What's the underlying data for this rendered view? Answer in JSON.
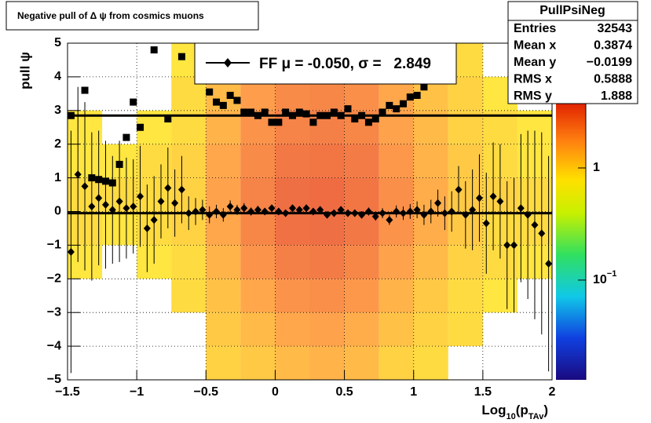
{
  "chart_data": {
    "type": "profile2d",
    "title": "Negative pull of Δ ψ from cosmics muons",
    "x_label": [
      "Log",
      "10",
      "(p",
      "TAv",
      ")"
    ],
    "y_label": "pull ψ",
    "xlim": [
      -1.5,
      2
    ],
    "xticks": [
      {
        "value": -1.5,
        "label": "−1.5"
      },
      {
        "value": -1,
        "label": "−1"
      },
      {
        "value": -0.5,
        "label": "−0.5"
      },
      0,
      0.5,
      1,
      1.5,
      2
    ],
    "ylim": [
      -5,
      5
    ],
    "yticks": [
      {
        "value": -5,
        "label": "−5"
      },
      {
        "value": -4,
        "label": "−4"
      },
      {
        "value": -3,
        "label": "−3"
      },
      {
        "value": -2,
        "label": "−2"
      },
      {
        "value": -1,
        "label": "−1"
      },
      0,
      1,
      2,
      3,
      4,
      5
    ],
    "log_z": true,
    "zlim": [
      0.0129,
      3.87
    ],
    "zticks": [
      1,
      {
        "value": 0.1,
        "label": "10",
        "superscript": "−1"
      }
    ],
    "heatmap": {
      "xbins": [
        -1.5,
        -1.25,
        -1,
        -0.75,
        -0.5,
        -0.25,
        0,
        0.25,
        0.5,
        0.75,
        1,
        1.25,
        1.5,
        1.75,
        2
      ],
      "ybins": [
        -5,
        -4,
        -3,
        -2,
        -1,
        0,
        1,
        2,
        3,
        4,
        5
      ],
      "values": [
        [
          null,
          null,
          null,
          null,
          1.0,
          1.1,
          1.3,
          1.4,
          1.3,
          1.0,
          0.9,
          null,
          null,
          null
        ],
        [
          null,
          null,
          null,
          null,
          1.1,
          1.3,
          1.6,
          1.7,
          1.5,
          1.2,
          1.0,
          0.9,
          null,
          null
        ],
        [
          null,
          null,
          null,
          0.9,
          1.2,
          1.6,
          2.0,
          2.1,
          1.9,
          1.4,
          1.1,
          0.9,
          0.8,
          null
        ],
        [
          0.8,
          null,
          0.8,
          0.9,
          1.4,
          2.0,
          2.5,
          2.6,
          2.3,
          1.7,
          1.3,
          1.0,
          0.9,
          0.8
        ],
        [
          0.9,
          0.8,
          0.9,
          1.0,
          1.6,
          2.3,
          2.9,
          3.0,
          2.7,
          2.0,
          1.5,
          1.1,
          0.9,
          0.9
        ],
        [
          0.9,
          0.9,
          0.9,
          1.0,
          1.7,
          2.4,
          3.0,
          3.1,
          2.8,
          2.1,
          1.5,
          1.1,
          1.0,
          0.9
        ],
        [
          0.8,
          0.8,
          0.9,
          1.0,
          1.6,
          2.2,
          2.7,
          2.8,
          2.6,
          1.9,
          1.4,
          1.1,
          0.9,
          0.8
        ],
        [
          0.8,
          null,
          0.8,
          0.9,
          1.4,
          2.0,
          2.4,
          2.5,
          2.3,
          1.7,
          1.3,
          1.0,
          0.9,
          0.8
        ],
        [
          null,
          null,
          null,
          0.9,
          1.3,
          1.8,
          2.2,
          2.3,
          2.1,
          1.6,
          1.2,
          1.0,
          0.8,
          null
        ],
        [
          null,
          null,
          null,
          0.8,
          1.1,
          1.5,
          1.9,
          2.0,
          1.8,
          1.4,
          1.1,
          0.9,
          null,
          null
        ]
      ]
    },
    "x": [
      -1.475,
      -1.425,
      -1.375,
      -1.325,
      -1.275,
      -1.225,
      -1.175,
      -1.125,
      -1.075,
      -1.025,
      -0.975,
      -0.925,
      -0.875,
      -0.825,
      -0.775,
      -0.725,
      -0.675,
      -0.625,
      -0.575,
      -0.525,
      -0.475,
      -0.425,
      -0.375,
      -0.325,
      -0.275,
      -0.225,
      -0.175,
      -0.125,
      -0.075,
      -0.025,
      0.025,
      0.075,
      0.125,
      0.175,
      0.225,
      0.275,
      0.325,
      0.375,
      0.425,
      0.475,
      0.525,
      0.575,
      0.625,
      0.675,
      0.725,
      0.775,
      0.825,
      0.875,
      0.925,
      0.975,
      1.025,
      1.075,
      1.125,
      1.175,
      1.225,
      1.275,
      1.325,
      1.375,
      1.425,
      1.475,
      1.525,
      1.575,
      1.625,
      1.675,
      1.725,
      1.775,
      1.825,
      1.875,
      1.925,
      1.975
    ],
    "series": [
      {
        "marker": "diamond",
        "color": "#000000",
        "values": [
          -1.2,
          1.1,
          0.75,
          0.15,
          0.4,
          0.2,
          0.05,
          0.3,
          0.1,
          0.15,
          0.45,
          -0.5,
          -0.25,
          0.3,
          0.7,
          0.25,
          0.65,
          -0.05,
          0.0,
          0.05,
          -0.1,
          0.0,
          -0.1,
          0.15,
          0.05,
          0.1,
          0.0,
          0.05,
          0.0,
          0.1,
          0.0,
          -0.05,
          0.1,
          0.05,
          0.1,
          0.0,
          0.05,
          -0.1,
          -0.05,
          0.05,
          -0.05,
          -0.05,
          -0.1,
          0.0,
          -0.15,
          -0.05,
          -0.25,
          0.0,
          -0.05,
          0.0,
          0.05,
          -0.1,
          0.0,
          0.25,
          -0.05,
          0.0,
          0.65,
          -0.1,
          0.05,
          0.4,
          -0.35,
          0.45,
          0.3,
          -1.0,
          -1.0,
          0.1,
          -0.1,
          -0.4,
          -0.65,
          -1.55
        ],
        "errors": [
          3.6,
          2.6,
          2.5,
          2.2,
          2.0,
          1.9,
          1.6,
          1.8,
          1.5,
          1.4,
          1.5,
          1.3,
          1.3,
          1.1,
          1.2,
          1.0,
          1.0,
          0.5,
          0.4,
          0.3,
          0.25,
          0.2,
          0.2,
          0.18,
          0.15,
          0.15,
          0.12,
          0.12,
          0.1,
          0.1,
          0.1,
          0.1,
          0.1,
          0.1,
          0.1,
          0.1,
          0.1,
          0.1,
          0.1,
          0.1,
          0.1,
          0.1,
          0.1,
          0.12,
          0.12,
          0.15,
          0.15,
          0.18,
          0.2,
          0.22,
          0.25,
          0.3,
          0.35,
          0.4,
          0.5,
          0.6,
          0.7,
          1.0,
          1.2,
          1.3,
          1.5,
          1.6,
          1.7,
          1.9,
          2.0,
          2.2,
          2.5,
          2.8,
          3.0,
          3.2
        ]
      },
      {
        "marker": "square",
        "color": "#000000",
        "values": [
          2.85,
          null,
          3.6,
          1.0,
          0.95,
          0.9,
          0.85,
          1.4,
          2.2,
          3.25,
          2.5,
          null,
          4.8,
          null,
          2.75,
          null,
          4.6,
          null,
          null,
          null,
          3.55,
          3.25,
          3.15,
          3.45,
          3.3,
          2.95,
          2.95,
          2.85,
          2.95,
          2.65,
          2.65,
          2.95,
          2.85,
          2.95,
          2.9,
          2.65,
          2.85,
          2.85,
          2.95,
          2.85,
          3.05,
          2.75,
          2.85,
          2.65,
          2.75,
          2.95,
          3.15,
          3.05,
          3.2,
          3.4,
          3.45,
          3.7,
          null,
          null,
          null,
          null,
          null,
          null,
          null,
          null,
          null,
          null,
          null,
          null,
          null,
          null,
          null,
          null,
          null,
          null
        ]
      }
    ],
    "mu": -0.05,
    "sigma": 2.849,
    "legend": "FF μ = -0.050, σ =   2.849",
    "stats": {
      "title": "PullPsiNeg",
      "rows": [
        [
          "Entries",
          "32543"
        ],
        [
          "Mean x",
          "0.3874"
        ],
        [
          "Mean y",
          "−0.0199"
        ],
        [
          "RMS x",
          "0.5888"
        ],
        [
          "RMS y",
          "1.888"
        ]
      ]
    }
  }
}
